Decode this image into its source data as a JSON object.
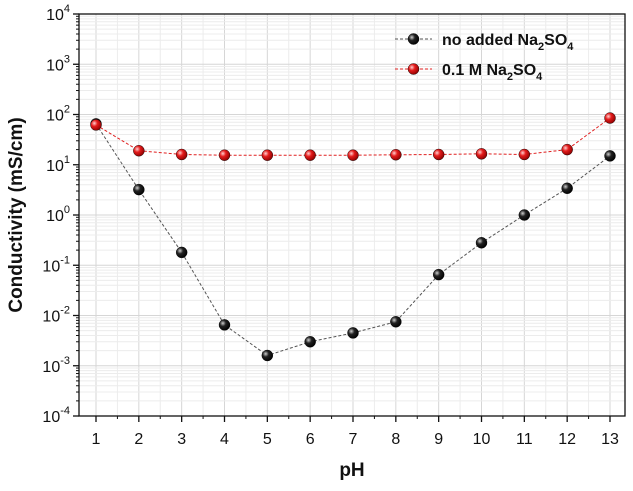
{
  "chart_data": {
    "type": "line",
    "xlabel": "pH",
    "ylabel": "Conductivity (mS/cm)",
    "y_scale": "log",
    "ylim": [
      0.0001,
      10000
    ],
    "xlim": [
      1,
      13
    ],
    "grid": true,
    "legend_position": "top-right",
    "x": [
      1,
      2,
      3,
      4,
      5,
      6,
      7,
      8,
      9,
      10,
      11,
      12,
      13
    ],
    "x_tick_labels": [
      "1",
      "2",
      "3",
      "4",
      "5",
      "6",
      "7",
      "8",
      "9",
      "10",
      "11",
      "12",
      "13"
    ],
    "y_ticks": [
      {
        "value": 10000,
        "base": "10",
        "exp": "4"
      },
      {
        "value": 1000,
        "base": "10",
        "exp": "3"
      },
      {
        "value": 100,
        "base": "10",
        "exp": "2"
      },
      {
        "value": 10,
        "base": "10",
        "exp": "1"
      },
      {
        "value": 1,
        "base": "10",
        "exp": "0"
      },
      {
        "value": 0.1,
        "base": "10",
        "exp": "-1"
      },
      {
        "value": 0.01,
        "base": "10",
        "exp": "-2"
      },
      {
        "value": 0.001,
        "base": "10",
        "exp": "-3"
      },
      {
        "value": 0.0001,
        "base": "10",
        "exp": "-4"
      }
    ],
    "series": [
      {
        "name_parts": [
          "no added Na",
          "2",
          "SO",
          "4"
        ],
        "color": "#111111",
        "line_color": "#555555",
        "values": [
          65,
          3.2,
          0.18,
          0.0065,
          0.0016,
          0.003,
          0.0045,
          0.0075,
          0.065,
          0.28,
          1.0,
          3.4,
          15
        ]
      },
      {
        "name_parts": [
          "0.1 M Na",
          "2",
          "SO",
          "4"
        ],
        "color": "#e02020",
        "line_color": "#e02020",
        "values": [
          62,
          19,
          16,
          15.5,
          15.5,
          15.5,
          15.5,
          15.8,
          16,
          16.5,
          16,
          20,
          85
        ]
      }
    ]
  }
}
